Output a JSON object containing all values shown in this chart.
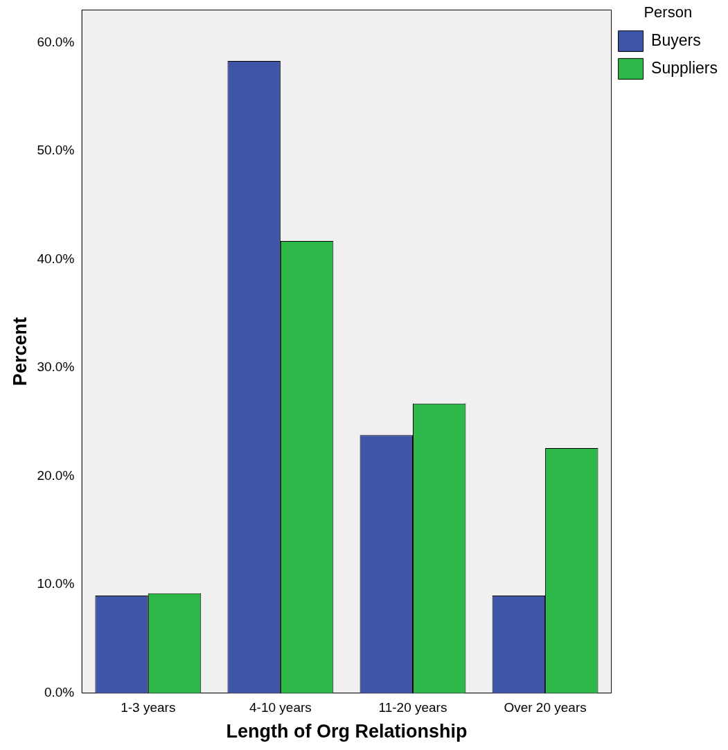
{
  "chart_data": {
    "type": "bar",
    "xlabel": "Length of Org Relationship",
    "ylabel": "Percent",
    "legend_title": "Person",
    "legend": "top right",
    "grid": false,
    "categories": [
      "1-3 years",
      "4-10 years",
      "11-20 years",
      "Over 20 years"
    ],
    "series": [
      {
        "name": "Buyers",
        "color": "#3f56a8",
        "values": [
          9.0,
          58.3,
          23.8,
          9.0
        ]
      },
      {
        "name": "Suppliers",
        "color": "#2db84a",
        "values": [
          9.2,
          41.7,
          26.7,
          22.6
        ]
      }
    ],
    "ylim": [
      0,
      63
    ],
    "yticks": [
      {
        "value": 0,
        "label": "0.0%"
      },
      {
        "value": 10,
        "label": "10.0%"
      },
      {
        "value": 20,
        "label": "20.0%"
      },
      {
        "value": 30,
        "label": "30.0%"
      },
      {
        "value": 40,
        "label": "40.0%"
      },
      {
        "value": 50,
        "label": "50.0%"
      },
      {
        "value": 60,
        "label": "60.0%"
      }
    ]
  }
}
